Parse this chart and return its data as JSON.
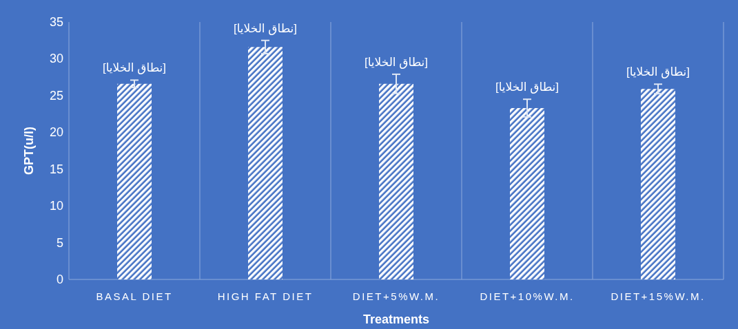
{
  "chart_data": {
    "type": "bar",
    "xlabel": "Treatments",
    "ylabel": "GPT(u/l)",
    "categories": [
      "BASAL DIET",
      "HIGH FAT DIET",
      "DIET+5%W.M.",
      "DIET+10%W.M.",
      "DIET+15%W.M."
    ],
    "values": [
      26.6,
      31.6,
      26.6,
      23.3,
      25.9
    ],
    "errors": [
      0.5,
      0.9,
      1.3,
      1.2,
      0.65
    ],
    "value_labels": [
      "[نطاق الخلايا]",
      "[نطاق الخلايا]",
      "[نطاق الخلايا]",
      "[نطاق الخلايا]",
      "[نطاق الخلايا]"
    ],
    "color": "#ffffff",
    "ylim": [
      0,
      35
    ],
    "yticks": [
      0,
      5,
      10,
      15,
      20,
      25,
      30,
      35
    ],
    "grid": "x"
  }
}
